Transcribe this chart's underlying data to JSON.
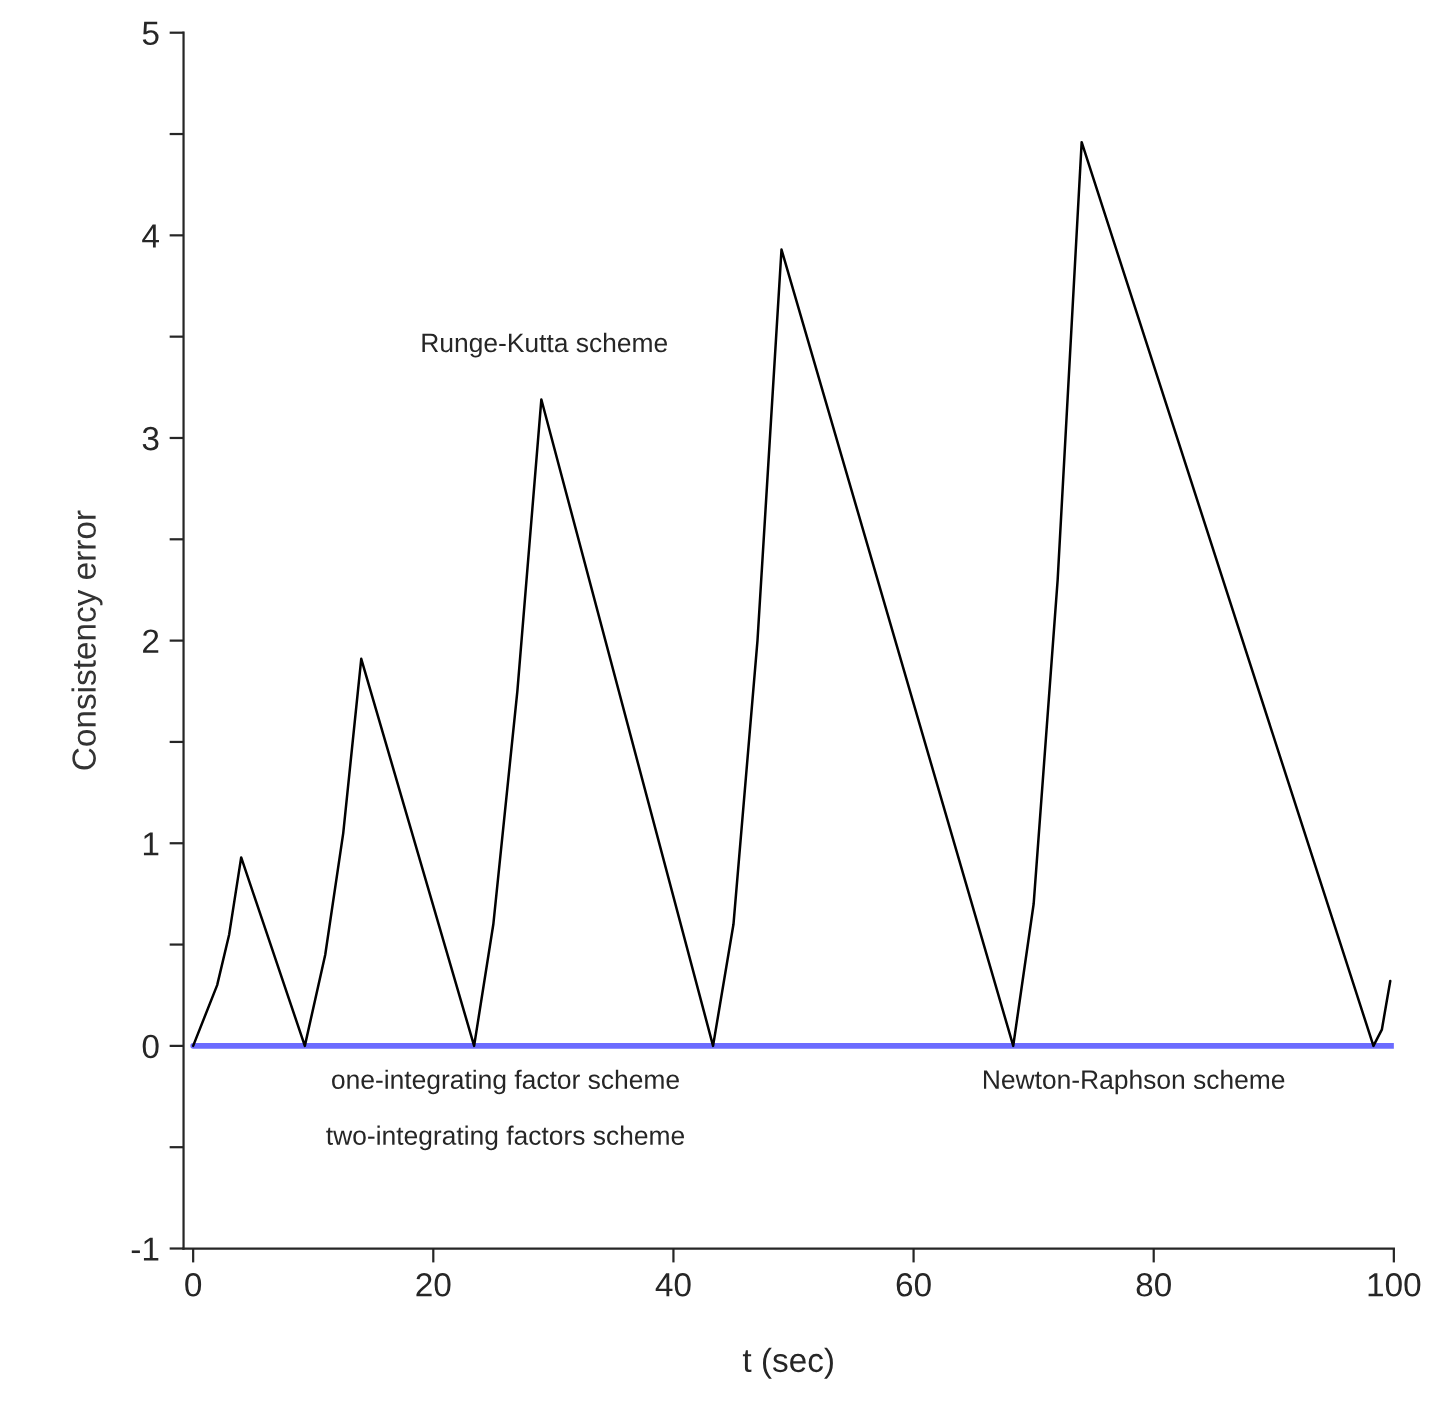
{
  "chart_data": {
    "type": "line",
    "xlabel": "t (sec)",
    "ylabel": "Consistency error",
    "xlim": [
      -0.8,
      100
    ],
    "ylim": [
      -1,
      5
    ],
    "xticks": [
      0,
      20,
      40,
      60,
      80,
      100
    ],
    "yticks": [
      -1,
      {
        "value": -0.5,
        "label": null
      },
      0,
      {
        "value": 0.5,
        "label": null
      },
      1,
      {
        "value": 1.5,
        "label": null
      },
      2,
      {
        "value": 2.5,
        "label": null
      },
      3,
      {
        "value": 3.5,
        "label": null
      },
      4,
      {
        "value": 4.5,
        "label": null
      },
      5
    ],
    "grid": false,
    "legend": false,
    "series": [
      {
        "color": "#6b6bff",
        "x": [
          0,
          100
        ],
        "values": [
          0,
          0
        ]
      },
      {
        "color": "#000000",
        "x": [
          0,
          2,
          3,
          4,
          9.3,
          11,
          12.5,
          14,
          23.4,
          25,
          27,
          29,
          43.3,
          45,
          47,
          49,
          68.3,
          70,
          72,
          74,
          98.3,
          99,
          99.7
        ],
        "values": [
          0,
          0.3,
          0.55,
          0.93,
          0,
          0.45,
          1.05,
          1.91,
          0,
          0.6,
          1.75,
          3.19,
          0,
          0.6,
          2.0,
          3.93,
          0,
          0.7,
          2.3,
          4.46,
          0,
          0.08,
          0.32
        ]
      }
    ],
    "annotations": [
      "Runge-Kutta scheme",
      "one-integrating factor scheme",
      "two-integrating factors scheme",
      "Newton-Raphson scheme"
    ]
  }
}
